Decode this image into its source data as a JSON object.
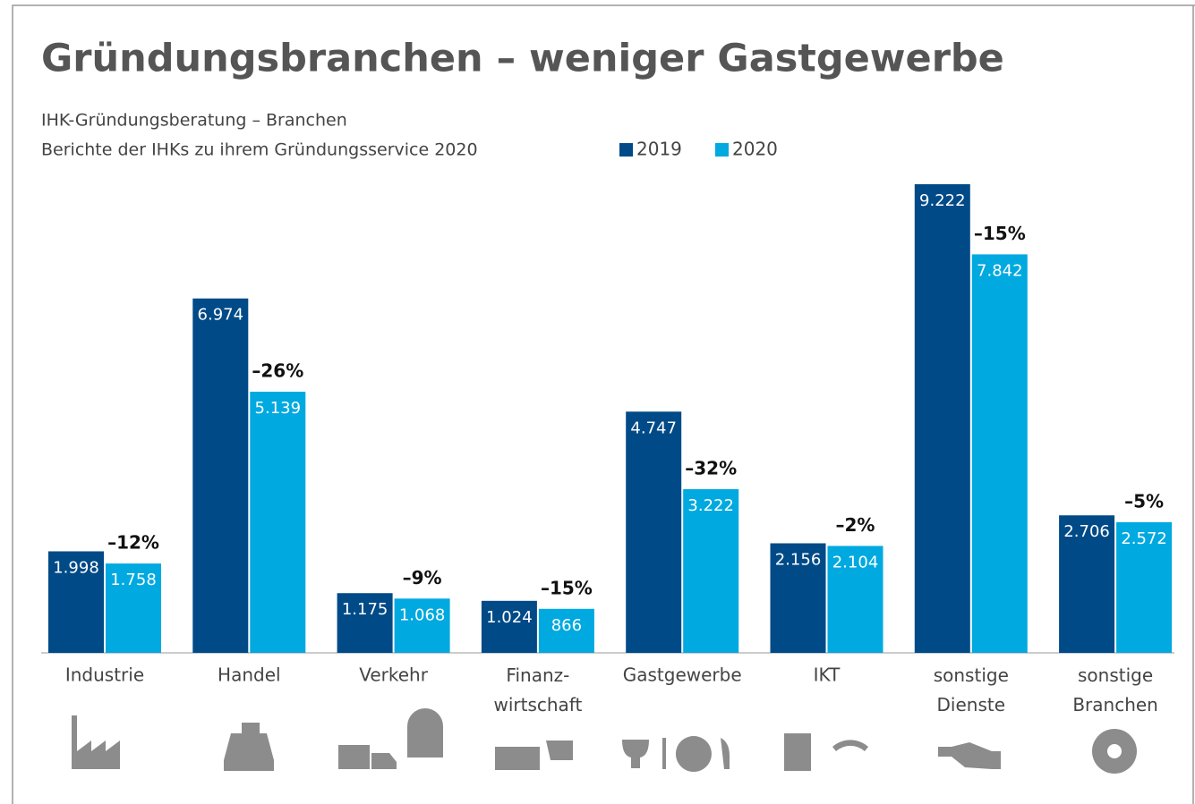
{
  "chart_data": {
    "type": "bar",
    "title": "Gründungsbranchen – weniger Gastgewerbe",
    "subtitle": [
      "IHK-Gründungsberatung – Branchen",
      "Berichte der IHKs zu ihrem Gründungsservice 2020"
    ],
    "categories": [
      "Industrie",
      "Handel",
      "Verkehr",
      "Finanz-\nwirtschaft",
      "Gastgewerbe",
      "IKT",
      "sonstige\nDienste",
      "sonstige\nBranchen"
    ],
    "series": [
      {
        "name": "2019",
        "color": "#004a87",
        "values": [
          1998,
          6974,
          1175,
          1024,
          4747,
          2156,
          9222,
          2706
        ],
        "value_labels": [
          "1.998",
          "6.974",
          "1.175",
          "1.024",
          "4.747",
          "2.156",
          "9.222",
          "2.706"
        ]
      },
      {
        "name": "2020",
        "color": "#00a9e0",
        "values": [
          1758,
          5139,
          1068,
          866,
          3222,
          2104,
          7842,
          2572
        ],
        "value_labels": [
          "1.758",
          "5.139",
          "1.068",
          "866",
          "3.222",
          "2.104",
          "7.842",
          "2.572"
        ]
      }
    ],
    "annotations": [
      "–12%",
      "–26%",
      "–9%",
      "–15%",
      "–32%",
      "–2%",
      "–15%",
      "–5%"
    ]
  }
}
